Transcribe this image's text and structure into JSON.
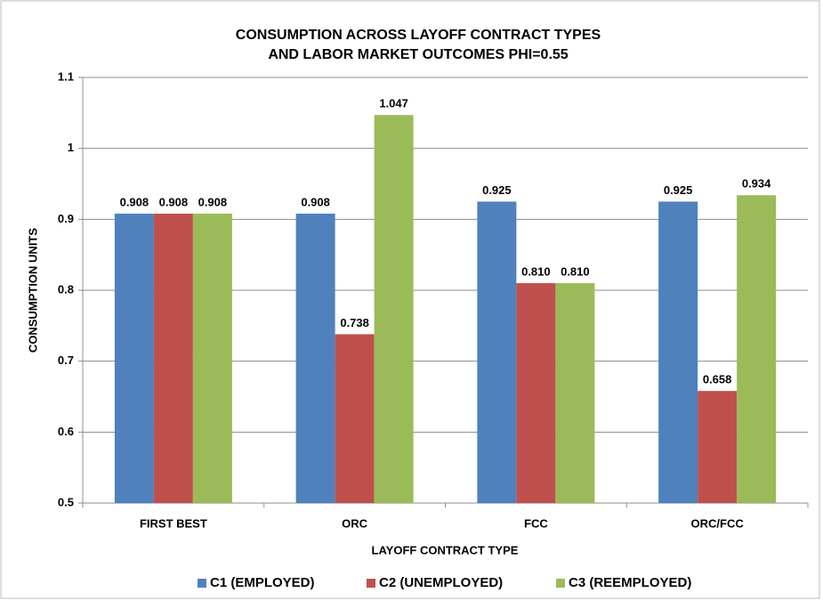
{
  "chart_data": {
    "type": "bar",
    "title": "CONSUMPTION ACROSS LAYOFF CONTRACT TYPES",
    "subtitle": "AND LABOR MARKET OUTCOMES PHI=0.55",
    "x_label": "LAYOFF CONTRACT TYPE",
    "y_label": "CONSUMPTION UNITS",
    "categories": [
      "FIRST BEST",
      "ORC",
      "FCC",
      "ORC/FCC"
    ],
    "series": [
      {
        "name": "C1 (EMPLOYED)",
        "color": "#4f81bd",
        "values": [
          0.908,
          0.908,
          0.925,
          0.925
        ],
        "value_labels": [
          "0.908",
          "0.908",
          "0.925",
          "0.925"
        ]
      },
      {
        "name": "C2 (UNEMPLOYED)",
        "color": "#c0504d",
        "values": [
          0.908,
          0.738,
          0.81,
          0.658
        ],
        "value_labels": [
          "0.908",
          "0.738",
          "0.810",
          "0.658"
        ]
      },
      {
        "name": "C3 (REEMPLOYED)",
        "color": "#9bbb59",
        "values": [
          0.908,
          1.047,
          0.81,
          0.934
        ],
        "value_labels": [
          "0.908",
          "1.047",
          "0.810",
          "0.934"
        ]
      }
    ],
    "ylim": [
      0.5,
      1.1
    ],
    "yticks": [
      0.5,
      0.6,
      0.7,
      0.8,
      0.9,
      1,
      1.1
    ],
    "grid": true,
    "legend": "bottom"
  }
}
